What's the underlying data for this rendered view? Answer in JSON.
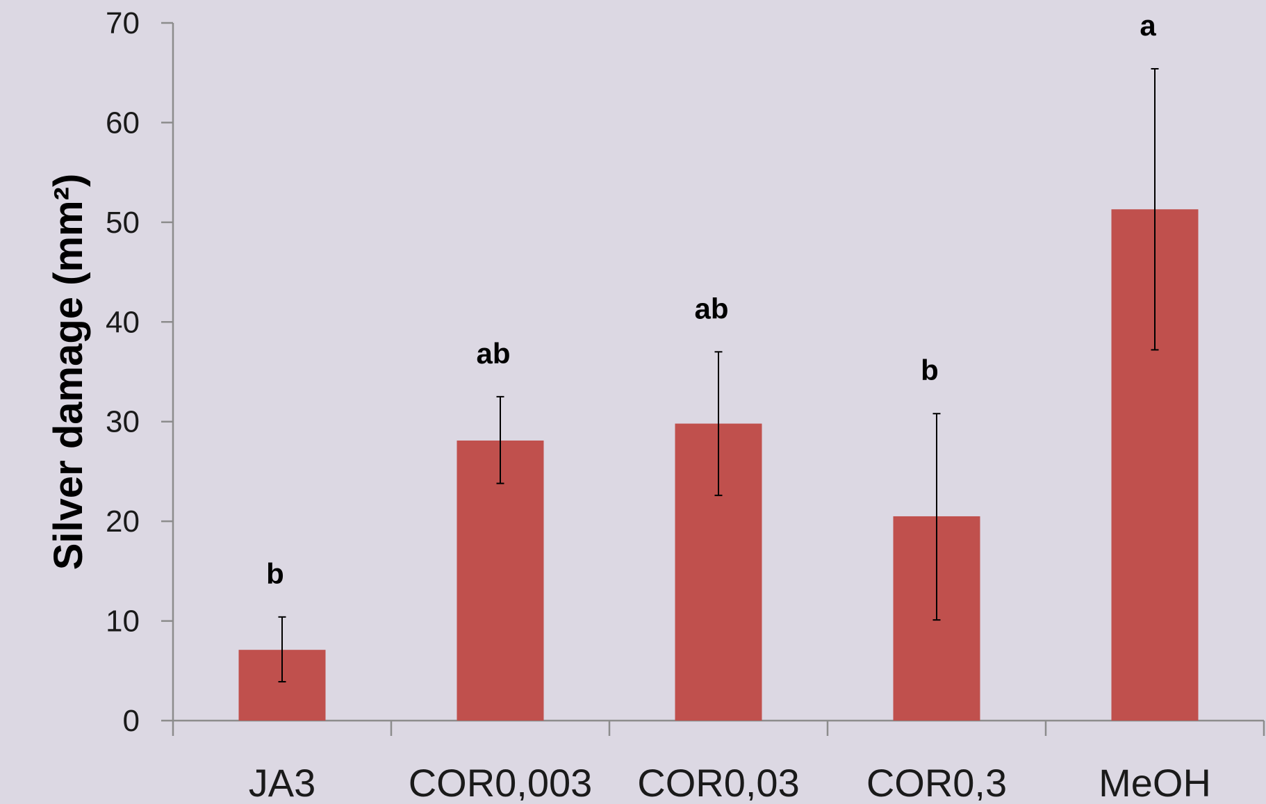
{
  "chart_data": {
    "type": "bar",
    "title": "",
    "xlabel": "",
    "ylabel": "Silver damage (mm²)",
    "ylim": [
      0,
      70
    ],
    "yticks": [
      0,
      10,
      20,
      30,
      40,
      50,
      60,
      70
    ],
    "grid": false,
    "legend": "none",
    "categories": [
      "JA3",
      "COR0,003",
      "COR0,03",
      "COR0,3",
      "MeOH"
    ],
    "values": [
      7.1,
      28.1,
      29.8,
      20.5,
      51.3
    ],
    "error_low": [
      3.9,
      23.8,
      22.6,
      10.1,
      37.2
    ],
    "error_high": [
      10.4,
      32.5,
      37.0,
      30.8,
      65.4
    ],
    "annotations": [
      "b",
      "ab",
      "ab",
      "b",
      "a"
    ],
    "colors": {
      "bar": "#c0504d",
      "background": "#dcd8e3",
      "axis": "#8c8c8c",
      "error_bar": "#000000"
    }
  }
}
